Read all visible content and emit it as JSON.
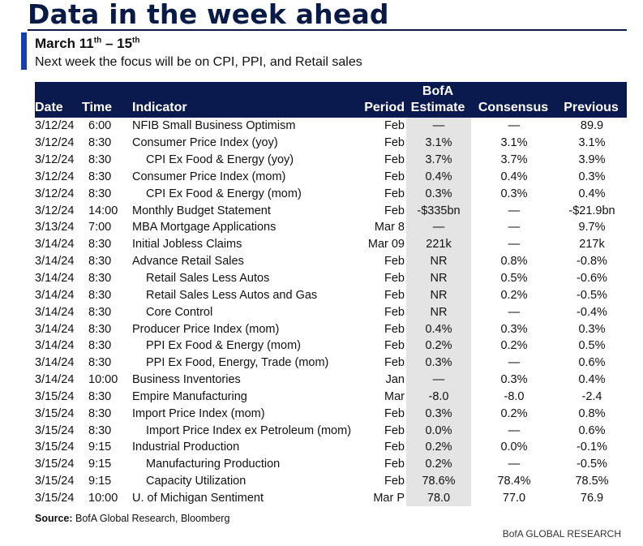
{
  "title": "Data in the week ahead",
  "subhead": {
    "prefix": "March 11",
    "sup1": "th",
    "middle": " – 15",
    "sup2": "th"
  },
  "lede": "Next week the focus will be on CPI, PPI, and Retail sales",
  "table": {
    "headers": {
      "date": "Date",
      "time": "Time",
      "indicator": "Indicator",
      "period": "Period",
      "estimate_top": "BofA",
      "estimate": "Estimate",
      "consensus": "Consensus",
      "previous": "Previous"
    },
    "rows": [
      {
        "date": "3/12/24",
        "time": "6:00",
        "indicator": "NFIB Small Business Optimism",
        "sub": false,
        "period": "Feb",
        "estimate": "—",
        "consensus": "—",
        "previous": "89.9"
      },
      {
        "date": "3/12/24",
        "time": "8:30",
        "indicator": "Consumer Price Index (yoy)",
        "sub": false,
        "period": "Feb",
        "estimate": "3.1%",
        "consensus": "3.1%",
        "previous": "3.1%"
      },
      {
        "date": "3/12/24",
        "time": "8:30",
        "indicator": "CPI Ex Food & Energy (yoy)",
        "sub": true,
        "period": "Feb",
        "estimate": "3.7%",
        "consensus": "3.7%",
        "previous": "3.9%"
      },
      {
        "date": "3/12/24",
        "time": "8:30",
        "indicator": "Consumer Price Index (mom)",
        "sub": false,
        "period": "Feb",
        "estimate": "0.4%",
        "consensus": "0.4%",
        "previous": "0.3%"
      },
      {
        "date": "3/12/24",
        "time": "8:30",
        "indicator": "CPI Ex Food & Energy (mom)",
        "sub": true,
        "period": "Feb",
        "estimate": "0.3%",
        "consensus": "0.3%",
        "previous": "0.4%"
      },
      {
        "date": "3/12/24",
        "time": "14:00",
        "indicator": "Monthly Budget Statement",
        "sub": false,
        "period": "Feb",
        "estimate": "-$335bn",
        "consensus": "—",
        "previous": "-$21.9bn"
      },
      {
        "date": "3/13/24",
        "time": "7:00",
        "indicator": "MBA Mortgage Applications",
        "sub": false,
        "period": "Mar 8",
        "estimate": "—",
        "consensus": "—",
        "previous": "9.7%"
      },
      {
        "date": "3/14/24",
        "time": "8:30",
        "indicator": "Initial Jobless Claims",
        "sub": false,
        "period": "Mar 09",
        "estimate": "221k",
        "consensus": "—",
        "previous": "217k"
      },
      {
        "date": "3/14/24",
        "time": "8:30",
        "indicator": "Advance Retail Sales",
        "sub": false,
        "period": "Feb",
        "estimate": "NR",
        "consensus": "0.8%",
        "previous": "-0.8%"
      },
      {
        "date": "3/14/24",
        "time": "8:30",
        "indicator": "Retail Sales Less Autos",
        "sub": true,
        "period": "Feb",
        "estimate": "NR",
        "consensus": "0.5%",
        "previous": "-0.6%"
      },
      {
        "date": "3/14/24",
        "time": "8:30",
        "indicator": "Retail Sales Less Autos and Gas",
        "sub": true,
        "period": "Feb",
        "estimate": "NR",
        "consensus": "0.2%",
        "previous": "-0.5%"
      },
      {
        "date": "3/14/24",
        "time": "8:30",
        "indicator": "Core Control",
        "sub": true,
        "period": "Feb",
        "estimate": "NR",
        "consensus": "—",
        "previous": "-0.4%"
      },
      {
        "date": "3/14/24",
        "time": "8:30",
        "indicator": "Producer Price Index (mom)",
        "sub": false,
        "period": "Feb",
        "estimate": "0.4%",
        "consensus": "0.3%",
        "previous": "0.3%"
      },
      {
        "date": "3/14/24",
        "time": "8:30",
        "indicator": "PPI Ex Food & Energy (mom)",
        "sub": true,
        "period": "Feb",
        "estimate": "0.2%",
        "consensus": "0.2%",
        "previous": "0.5%"
      },
      {
        "date": "3/14/24",
        "time": "8:30",
        "indicator": "PPI Ex Food, Energy, Trade (mom)",
        "sub": true,
        "period": "Feb",
        "estimate": "0.3%",
        "consensus": "—",
        "previous": "0.6%"
      },
      {
        "date": "3/14/24",
        "time": "10:00",
        "indicator": "Business Inventories",
        "sub": false,
        "period": "Jan",
        "estimate": "—",
        "consensus": "0.3%",
        "previous": "0.4%"
      },
      {
        "date": "3/15/24",
        "time": "8:30",
        "indicator": "Empire Manufacturing",
        "sub": false,
        "period": "Mar",
        "estimate": "-8.0",
        "consensus": "-8.0",
        "previous": "-2.4"
      },
      {
        "date": "3/15/24",
        "time": "8:30",
        "indicator": "Import Price Index (mom)",
        "sub": false,
        "period": "Feb",
        "estimate": "0.3%",
        "consensus": "0.2%",
        "previous": "0.8%"
      },
      {
        "date": "3/15/24",
        "time": "8:30",
        "indicator": "Import Price Index ex Petroleum (mom)",
        "sub": true,
        "period": "Feb",
        "estimate": "0.0%",
        "consensus": "—",
        "previous": "0.6%"
      },
      {
        "date": "3/15/24",
        "time": "9:15",
        "indicator": "Industrial Production",
        "sub": false,
        "period": "Feb",
        "estimate": "0.2%",
        "consensus": "0.0%",
        "previous": "-0.1%"
      },
      {
        "date": "3/15/24",
        "time": "9:15",
        "indicator": "Manufacturing Production",
        "sub": true,
        "period": "Feb",
        "estimate": "0.2%",
        "consensus": "—",
        "previous": "-0.5%"
      },
      {
        "date": "3/15/24",
        "time": "9:15",
        "indicator": "Capacity Utilization",
        "sub": true,
        "period": "Feb",
        "estimate": "78.6%",
        "consensus": "78.4%",
        "previous": "78.5%"
      },
      {
        "date": "3/15/24",
        "time": "10:00",
        "indicator": "U. of Michigan Sentiment",
        "sub": false,
        "period": "Mar P",
        "estimate": "78.0",
        "consensus": "77.0",
        "previous": "76.9"
      }
    ]
  },
  "source": {
    "label": "Source:",
    "text": " BofA Global Research, Bloomberg"
  },
  "footer": "BofA GLOBAL RESEARCH",
  "colors": {
    "header_bg": "#0b1a4e",
    "accent": "#1a3fa8",
    "title": "#0a1a47",
    "estimate_shade": "#e4e4e4"
  }
}
